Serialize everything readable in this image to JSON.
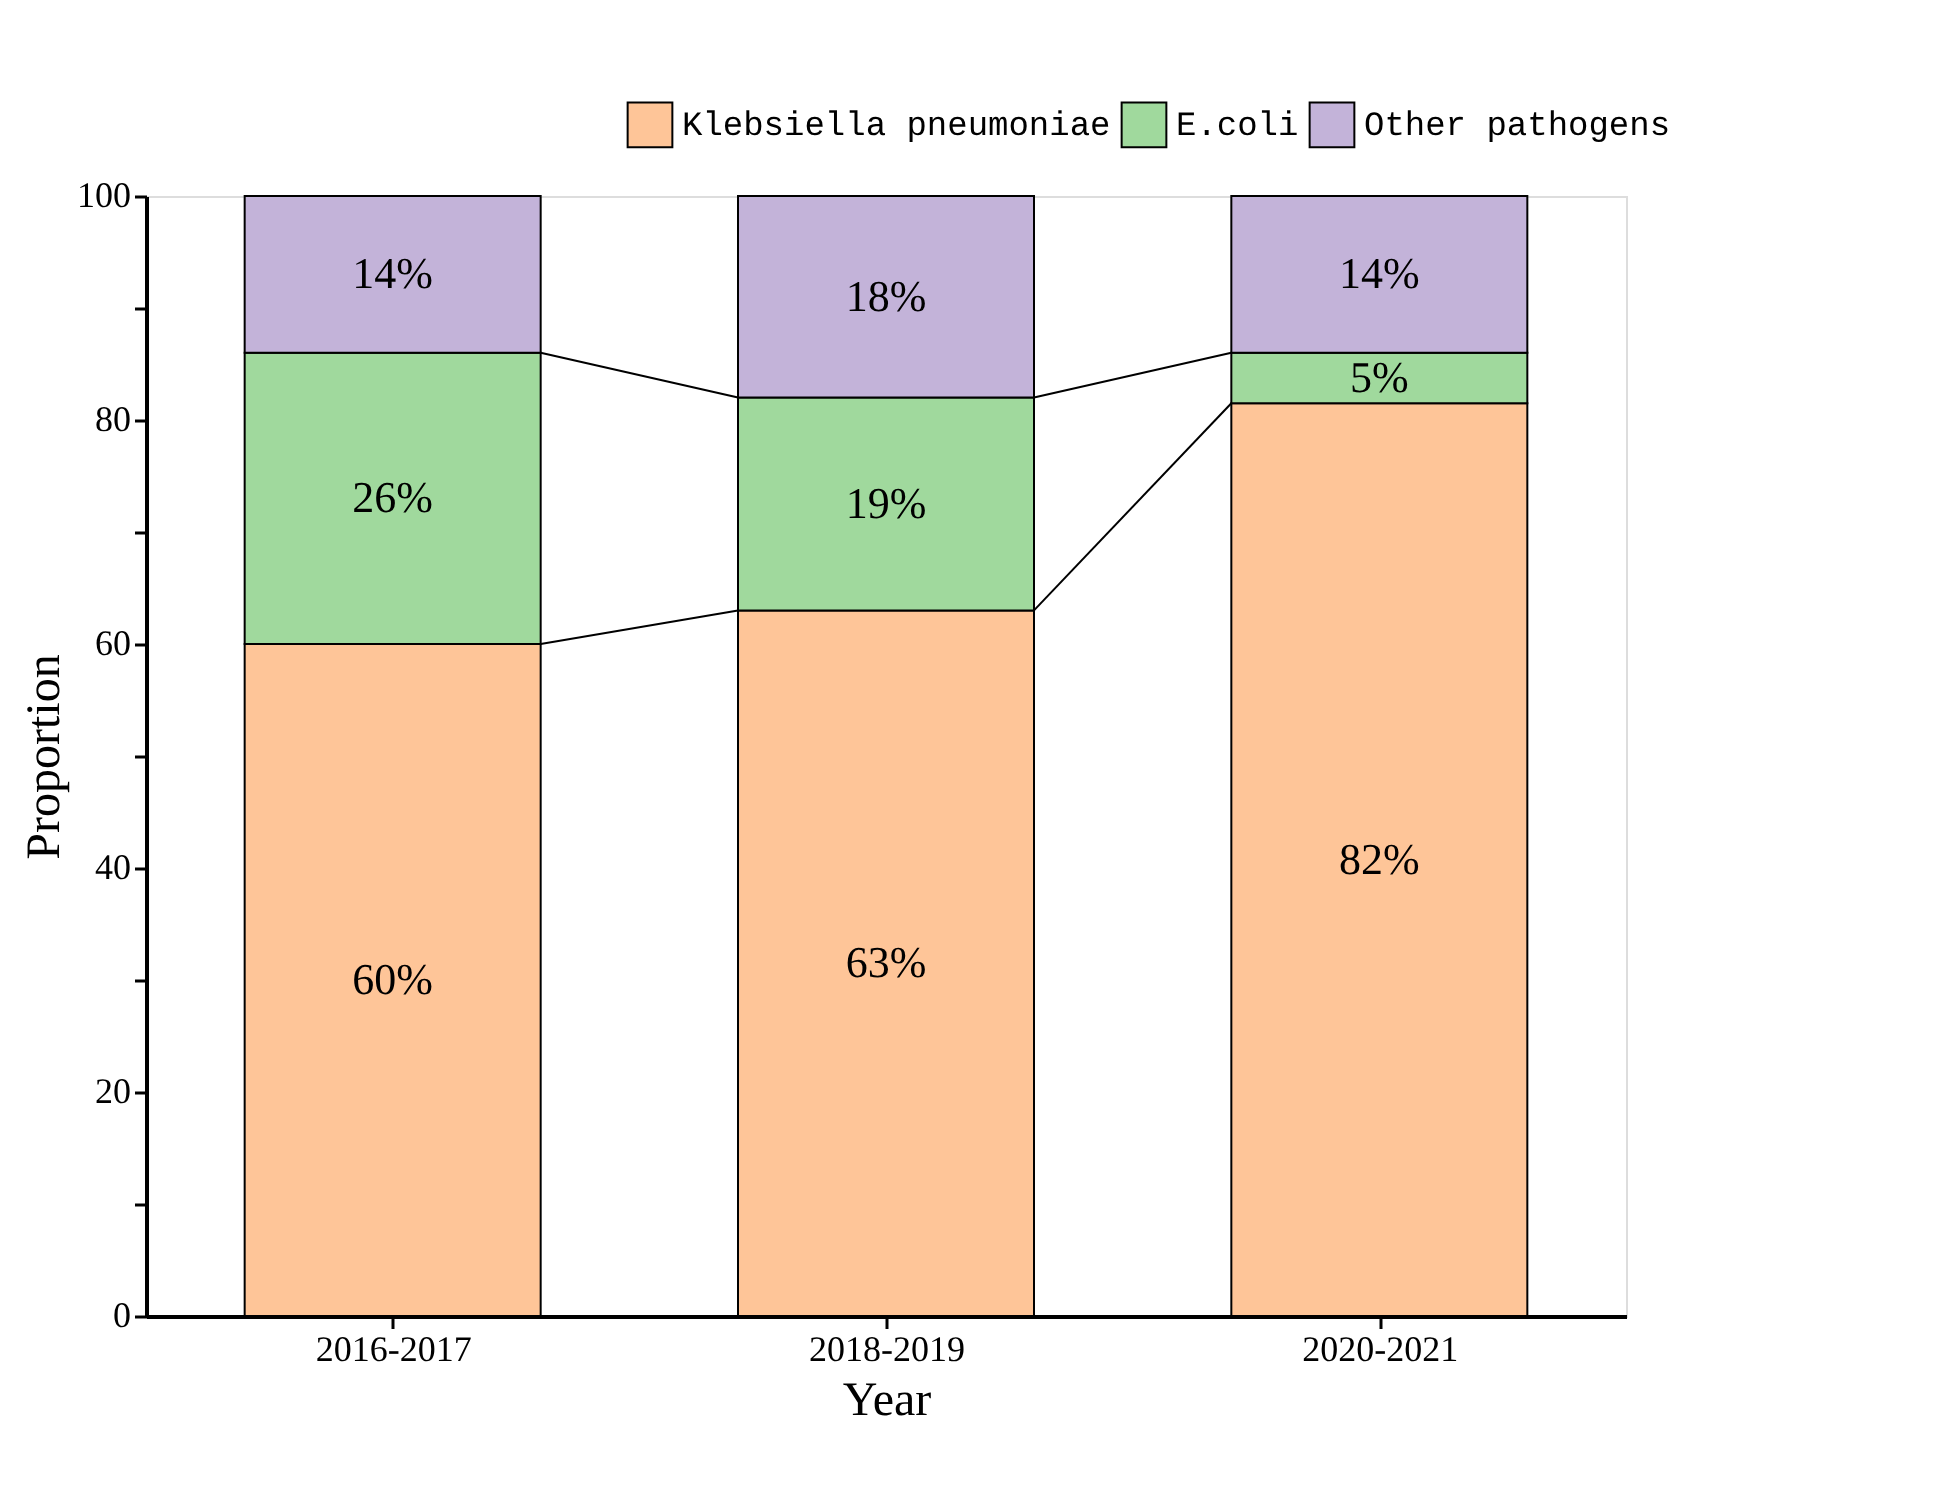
{
  "chart_data": {
    "type": "bar",
    "stacked": true,
    "xlabel": "Year",
    "ylabel": "Proportion",
    "categories": [
      "2016-2017",
      "2018-2019",
      "2020-2021"
    ],
    "series": [
      {
        "name": "Klebsiella pneumoniae",
        "color": "#fec598",
        "values": [
          60,
          63,
          81.5
        ],
        "value_labels": [
          "60%",
          "63%",
          "82%"
        ]
      },
      {
        "name": "E.coli",
        "color": "#a0d99d",
        "values": [
          26,
          19,
          4.5
        ],
        "value_labels": [
          "26%",
          "19%",
          "5%"
        ]
      },
      {
        "name": "Other pathogens",
        "color": "#c3b3d9",
        "values": [
          14,
          18,
          14
        ],
        "value_labels": [
          "14%",
          "18%",
          "14%"
        ]
      }
    ],
    "ylim": [
      0,
      100
    ],
    "yticks": [
      0,
      {
        "value": 10,
        "label": null
      },
      20,
      {
        "value": 30,
        "label": null
      },
      40,
      {
        "value": 50,
        "label": null
      },
      60,
      {
        "value": 70,
        "label": null
      },
      80,
      {
        "value": 90,
        "label": null
      },
      100
    ],
    "grid": false,
    "legend": "top right"
  }
}
